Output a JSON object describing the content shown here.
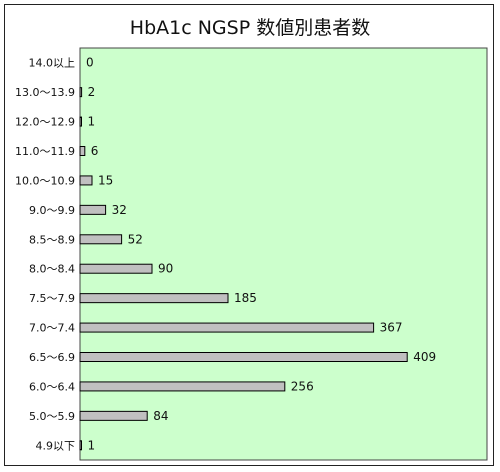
{
  "chart_data": {
    "type": "bar",
    "orientation": "horizontal",
    "title": "HbA1c NGSP 数値別患者数",
    "categories": [
      "14.0以上",
      "13.0～13.9",
      "12.0～12.9",
      "11.0～11.9",
      "10.0～10.9",
      "9.0～9.9",
      "8.5～8.9",
      "8.0～8.4",
      "7.5～7.9",
      "7.0～7.4",
      "6.5～6.9",
      "6.0～6.4",
      "5.0～5.9",
      "4.9以下"
    ],
    "values": [
      0,
      2,
      1,
      6,
      15,
      32,
      52,
      90,
      185,
      367,
      409,
      256,
      84,
      1
    ],
    "xlim": [
      0,
      450
    ],
    "grid": false,
    "legend": "none",
    "colors": {
      "plot_background": "#ccffcc",
      "bar_fill": "#c0c0c0",
      "bar_stroke": "#000000"
    }
  }
}
